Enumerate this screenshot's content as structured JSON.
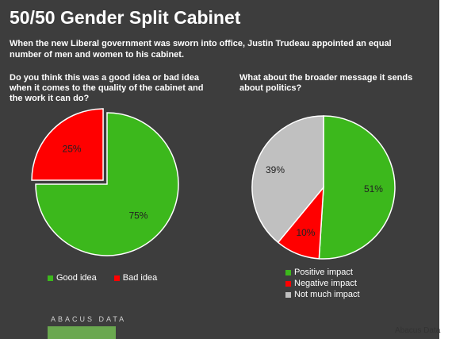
{
  "title": "50/50 Gender Split Cabinet",
  "subtitle": "When the new Liberal government was sworn into office, Justin Trudeau appointed an equal number of men and women to his cabinet.",
  "logo_text": "ABACUS DATA",
  "credit": "Abacus Data",
  "colors": {
    "background": "#3d3d3d",
    "green": "#3cb81c",
    "red": "#ff0000",
    "grey": "#c0c0c0",
    "slice_border": "#ffffff"
  },
  "chart_data": [
    {
      "type": "pie",
      "title": "Do you think this was a good idea or bad idea when it comes to the quality of the cabinet and the work it can do?",
      "categories": [
        "Good idea",
        "Bad idea"
      ],
      "values": [
        75,
        25
      ],
      "labels": [
        "75%",
        "25%"
      ],
      "colors": [
        "#3cb81c",
        "#ff0000"
      ],
      "legend": "bottom"
    },
    {
      "type": "pie",
      "title": "What about the broader message it sends about politics?",
      "categories": [
        "Positive impact",
        "Negative impact",
        "Not much impact"
      ],
      "values": [
        51,
        10,
        39
      ],
      "labels": [
        "51%",
        "10%",
        "39%"
      ],
      "colors": [
        "#3cb81c",
        "#ff0000",
        "#c0c0c0"
      ],
      "legend": "bottom"
    }
  ]
}
